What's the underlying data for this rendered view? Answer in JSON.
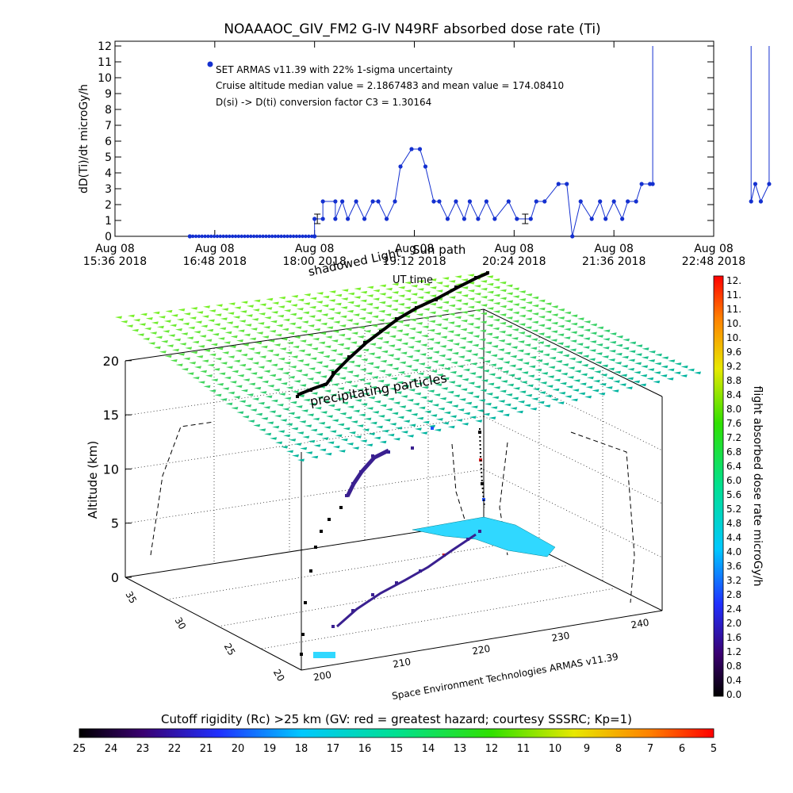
{
  "chart_data": [
    {
      "type": "line",
      "title": "NOAAAOC_GIV_FM2 G-IV    N49RF  absorbed dose rate (Ti)",
      "ylabel": "dD(Ti)/dt microGy/h",
      "ylim": [
        0,
        12
      ],
      "yticks": [
        "0",
        "1",
        "2",
        "3",
        "4",
        "5",
        "6",
        "7",
        "8",
        "9",
        "10",
        "11",
        "12"
      ],
      "xlim_minutes": [
        936,
        1368
      ],
      "xticks": [
        {
          "day": "Aug 08",
          "time": "15:36 2018"
        },
        {
          "day": "Aug 08",
          "time": "16:48 2018"
        },
        {
          "day": "Aug 08",
          "time": "18:00 2018"
        },
        {
          "day": "Aug 08",
          "time": "19:12 2018"
        },
        {
          "day": "Aug 08",
          "time": "20:24 2018"
        },
        {
          "day": "Aug 08",
          "time": "21:36 2018"
        },
        {
          "day": "Aug 08",
          "time": "22:48 2018"
        }
      ],
      "legend_marker_color": "#1430d0",
      "annotations": [
        "SET ARMAS v11.39 with 22% 1-sigma uncertainty",
        "Cruise altitude median value = 2.1867483 and mean value = 174.08410",
        "D(si) -> D(ti) conversion factor C3 = 1.30164"
      ],
      "series": [
        {
          "x_minutes": [
            990,
            1080,
            1080,
            1086,
            1086,
            1095,
            1095,
            1100,
            1104,
            1110,
            1116,
            1122,
            1126,
            1132,
            1138,
            1142,
            1150,
            1156,
            1160,
            1166,
            1170,
            1176,
            1182,
            1188,
            1192,
            1198,
            1204,
            1210,
            1220,
            1226,
            1236,
            1240,
            1246,
            1256,
            1262,
            1266,
            1272,
            1280,
            1286,
            1290,
            1296,
            1302,
            1306,
            1312,
            1316,
            1322,
            1324,
            1324
          ],
          "values": [
            0,
            0,
            1.1,
            1.1,
            2.2,
            2.2,
            1.1,
            2.2,
            1.1,
            2.2,
            1.1,
            2.2,
            2.2,
            1.1,
            2.2,
            4.4,
            5.5,
            5.5,
            4.4,
            2.2,
            2.2,
            1.1,
            2.2,
            1.1,
            2.2,
            1.1,
            2.2,
            1.1,
            2.2,
            1.1,
            1.1,
            2.2,
            2.2,
            3.3,
            3.3,
            0,
            2.2,
            1.1,
            2.2,
            1.1,
            2.2,
            1.1,
            2.2,
            2.2,
            3.3,
            3.3,
            3.3,
            12
          ]
        },
        {
          "x_minutes": [
            1395,
            1395,
            1398,
            1402,
            1408,
            1408
          ],
          "values": [
            12,
            2.2,
            3.3,
            2.2,
            3.3,
            12
          ]
        },
        {
          "x_minutes": [
            1426,
            1428,
            1432
          ],
          "values": [
            12,
            0,
            0
          ]
        }
      ],
      "error_bars": [
        {
          "x_minutes": 1082,
          "value": 1.1
        },
        {
          "x_minutes": 1232,
          "value": 1.1
        }
      ]
    },
    {
      "type": "scatter",
      "title": "",
      "ylabel": "Altitude (km)",
      "zticks": [
        "0",
        "5",
        "10",
        "15",
        "20"
      ],
      "lat_ticks": [
        "20",
        "25",
        "30",
        "35"
      ],
      "lon_ticks": [
        "200",
        "210",
        "220",
        "230",
        "240"
      ],
      "footer": "Space Environment Technologies ARMAS v11.39",
      "annotations": [
        "Sun path",
        "shadowed Light",
        "UT time",
        "precipitating particles"
      ],
      "colorbar_right": {
        "label": "flight absorbed dose rate microGy/h",
        "ticks": [
          "0.0",
          "0.4",
          "0.8",
          "1.2",
          "1.6",
          "2.0",
          "2.4",
          "2.8",
          "3.2",
          "3.6",
          "4.0",
          "4.4",
          "4.8",
          "5.2",
          "5.6",
          "6.0",
          "6.4",
          "6.8",
          "7.2",
          "7.6",
          "8.0",
          "8.4",
          "8.8",
          "9.2",
          "9.6",
          "10.",
          "10.",
          "11.",
          "11.",
          "12."
        ]
      },
      "colorbar_bottom": {
        "label": "Cutoff rigidity (Rc) >25 km (GV: red = greatest hazard; courtesy SSSRC; Kp=1)",
        "ticks": [
          "25",
          "24",
          "23",
          "22",
          "21",
          "20",
          "19",
          "18",
          "17",
          "16",
          "15",
          "14",
          "13",
          "12",
          "11",
          "10",
          "9",
          "8",
          "7",
          "6",
          "5"
        ]
      }
    }
  ]
}
